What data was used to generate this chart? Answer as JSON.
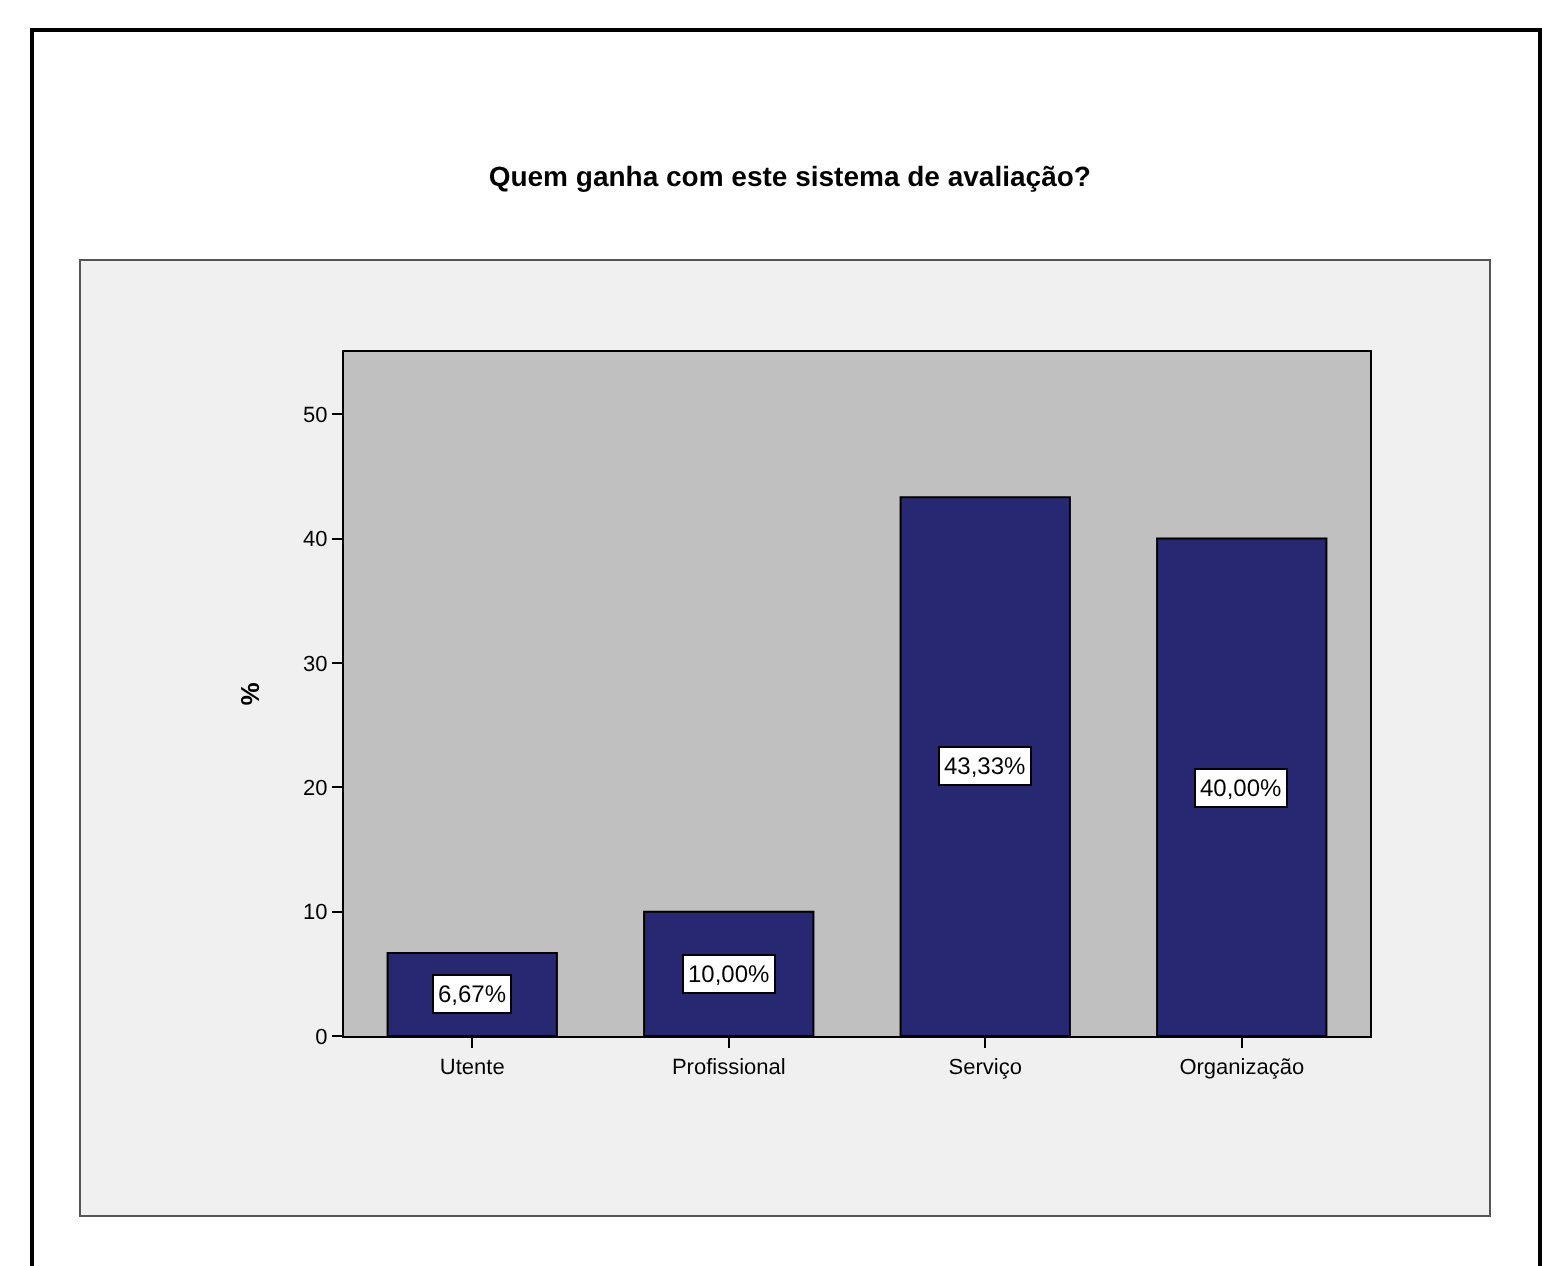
{
  "chart_data": {
    "type": "bar",
    "title": "Quem ganha com este sistema de avaliação?",
    "ylabel": "%",
    "categories": [
      "Utente",
      "Profissional",
      "Serviço",
      "Organização"
    ],
    "values": [
      6.67,
      10.0,
      43.33,
      40.0
    ],
    "value_labels": [
      "6,67%",
      "10,00%",
      "43,33%",
      "40,00%"
    ],
    "color": "#282872",
    "ylim": [
      0,
      55
    ],
    "yticks": [
      0,
      10,
      20,
      30,
      40,
      50
    ],
    "grid": false
  }
}
